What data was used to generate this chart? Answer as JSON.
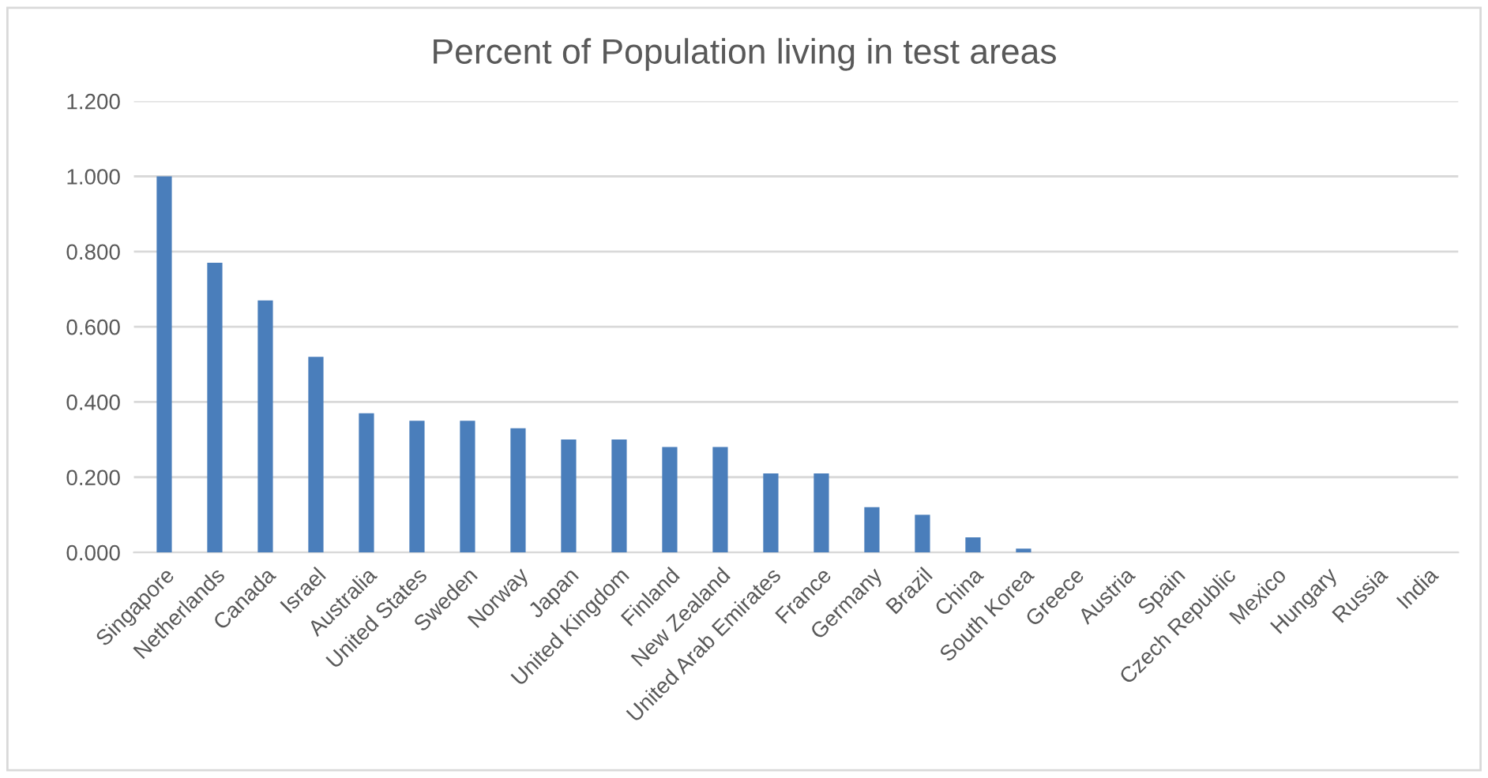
{
  "chart_data": {
    "type": "bar",
    "title": "Percent of Population living in test areas",
    "categories": [
      "Singapore",
      "Netherlands",
      "Canada",
      "Israel",
      "Australia",
      "United States",
      "Sweden",
      "Norway",
      "Japan",
      "United Kingdom",
      "Finland",
      "New Zealand",
      "United Arab Emirates",
      "France",
      "Germany",
      "Brazil",
      "China",
      "South Korea",
      "Greece",
      "Austria",
      "Spain",
      "Czech Republic",
      "Mexico",
      "Hungary",
      "Russia",
      "India"
    ],
    "values": [
      1.0,
      0.77,
      0.67,
      0.52,
      0.37,
      0.35,
      0.35,
      0.33,
      0.3,
      0.3,
      0.28,
      0.28,
      0.21,
      0.21,
      0.12,
      0.1,
      0.04,
      0.01,
      0,
      0,
      0,
      0,
      0,
      0,
      0,
      0
    ],
    "color": "#4a7ebb",
    "ylim": [
      0,
      1.2
    ],
    "yticks": [
      {
        "value": 0,
        "label": "0.000"
      },
      {
        "value": 0.2,
        "label": "0.200"
      },
      {
        "value": 0.4,
        "label": "0.400"
      },
      {
        "value": 0.6,
        "label": "0.600"
      },
      {
        "value": 0.8,
        "label": "0.800"
      },
      {
        "value": 1.0,
        "label": "1.000"
      },
      {
        "value": 1.2,
        "label": "1.200"
      }
    ],
    "grid": "y"
  }
}
